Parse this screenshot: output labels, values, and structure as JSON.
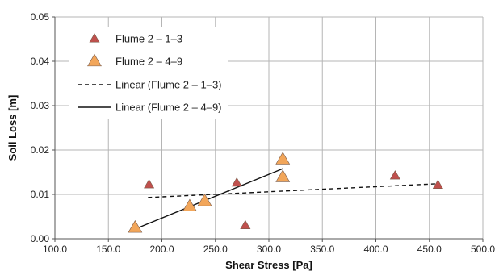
{
  "chart_data": {
    "type": "scatter",
    "xlabel": "Shear Stress [Pa]",
    "ylabel": "Soil Loss [m]",
    "xlim": [
      100,
      500
    ],
    "ylim": [
      0,
      0.05
    ],
    "x_ticks": [
      100,
      150,
      200,
      250,
      300,
      350,
      400,
      450,
      500
    ],
    "x_tick_labels": [
      "100.0",
      "150.0",
      "200.0",
      "250.0",
      "300.0",
      "350.0",
      "400.0",
      "450.0",
      "500.0"
    ],
    "y_ticks": [
      0,
      0.01,
      0.02,
      0.03,
      0.04,
      0.05
    ],
    "y_tick_labels": [
      "0.00",
      "0.01",
      "0.02",
      "0.03",
      "0.04",
      "0.05"
    ],
    "grid": true,
    "legend_position": "top-left",
    "series": [
      {
        "name": "Flume 2 – 1–3",
        "kind": "scatter",
        "marker": "triangle",
        "color": "#c0504d",
        "points": [
          {
            "x": 188,
            "y": 0.0122
          },
          {
            "x": 270,
            "y": 0.0126
          },
          {
            "x": 278,
            "y": 0.003
          },
          {
            "x": 418,
            "y": 0.0142
          },
          {
            "x": 458,
            "y": 0.0121
          }
        ]
      },
      {
        "name": "Flume 2 – 4–9",
        "kind": "scatter",
        "marker": "triangle",
        "color": "#f2a65a",
        "points": [
          {
            "x": 175,
            "y": 0.0025
          },
          {
            "x": 226,
            "y": 0.0073
          },
          {
            "x": 240,
            "y": 0.0085
          },
          {
            "x": 313,
            "y": 0.0179
          },
          {
            "x": 313,
            "y": 0.0139
          }
        ]
      },
      {
        "name": "Linear (Flume 2 – 1–3)",
        "kind": "line",
        "dash": "dashed",
        "color": "#111111",
        "points": [
          {
            "x": 187,
            "y": 0.0093
          },
          {
            "x": 458,
            "y": 0.0124
          }
        ]
      },
      {
        "name": "Linear (Flume 2 – 4–9)",
        "kind": "line",
        "dash": "solid",
        "color": "#111111",
        "points": [
          {
            "x": 175,
            "y": 0.0022
          },
          {
            "x": 313,
            "y": 0.0158
          }
        ]
      }
    ]
  }
}
